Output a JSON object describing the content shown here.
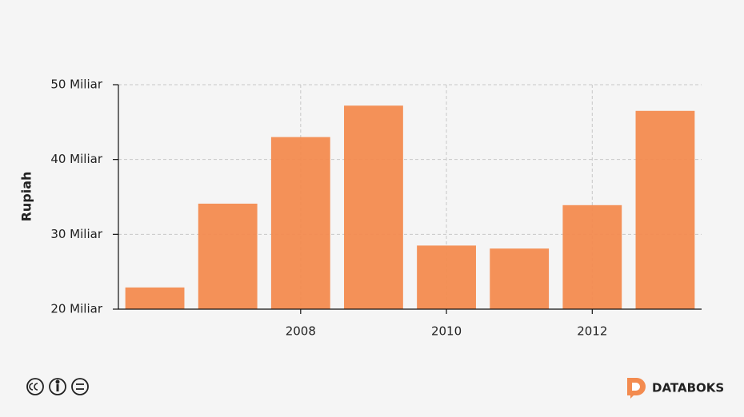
{
  "chart_data": {
    "type": "bar",
    "y_label": "Rupiah",
    "x": [
      2006,
      2007,
      2008,
      2009,
      2010,
      2011,
      2012,
      2013
    ],
    "values": [
      22900000000,
      34100000000,
      43000000000,
      47200000000,
      28500000000,
      28100000000,
      33900000000,
      46500000000
    ],
    "color": "#f38b4f",
    "xlim": [
      2005.5,
      2013.5
    ],
    "xticks": [
      2008,
      2010,
      2012
    ],
    "ylim": [
      20000000000,
      50000000000
    ],
    "yticks": [
      {
        "value": 20000000000,
        "label": "20 Miliar"
      },
      {
        "value": 30000000000,
        "label": "30 Miliar"
      },
      {
        "value": 40000000000,
        "label": "40 Miliar"
      },
      {
        "value": 50000000000,
        "label": "50 Miliar"
      }
    ],
    "grid": true,
    "brand": "DATABOKS"
  }
}
